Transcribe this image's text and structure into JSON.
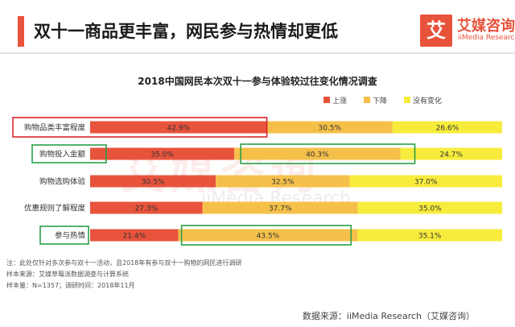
{
  "header": {
    "title": "双十一商品更丰富，网民参与热情却更低",
    "logo_cn": "艾媒咨询",
    "logo_en": "iiMedia Research",
    "logo_mark": "艾"
  },
  "watermark": {
    "cn": "艾媒咨询",
    "en": "iiMedia Research"
  },
  "colors": {
    "accent": "#e8533c",
    "up": "#e8533c",
    "down": "#f5c04a",
    "nochange": "#f7ec3c",
    "highlight_red": "#d9262b",
    "highlight_green": "#2aa04a"
  },
  "chart_data": {
    "type": "bar",
    "stacked": true,
    "orientation": "horizontal",
    "title": "2018中国网民本次双十一参与体验较过往变化情况调查",
    "categories": [
      "购物品类丰富程度",
      "购物投入金额",
      "购物选购体验",
      "优惠规则了解程度",
      "参与热情"
    ],
    "series": [
      {
        "name": "上涨",
        "values": [
          42.9,
          35.0,
          30.5,
          27.3,
          21.4
        ],
        "labels": [
          "42.9%",
          "35.0%",
          "30.5%",
          "27.3%",
          "21.4%"
        ]
      },
      {
        "name": "下降",
        "values": [
          30.5,
          40.3,
          32.5,
          37.7,
          43.5
        ],
        "labels": [
          "30.5%",
          "40.3%",
          "32.5%",
          "37.7%",
          "43.5%"
        ]
      },
      {
        "name": "没有变化",
        "values": [
          26.6,
          24.7,
          37.0,
          35.0,
          35.1
        ],
        "labels": [
          "26.6%",
          "24.7%",
          "37.0%",
          "35.0%",
          "35.1%"
        ]
      }
    ],
    "legend_position": "top-right",
    "highlights": [
      {
        "color": "red",
        "row": 0,
        "segment": "label+上涨"
      },
      {
        "color": "green",
        "row": 1,
        "segment": "下降"
      },
      {
        "color": "green",
        "row": 4,
        "segment": "label"
      },
      {
        "color": "green",
        "row": 4,
        "segment": "下降"
      }
    ]
  },
  "footnotes": {
    "note": "注：此处仅针对多次参与双十一活动，且2018年有参与双十一购物的网民进行调研",
    "sample_source": "样本来源：艾媒草莓派数据调查与计算系统",
    "sample_size": "样本量：N=1357；调研时间：2018年11月"
  },
  "source": "数据来源：iiMedia Research（艾媒咨询）"
}
